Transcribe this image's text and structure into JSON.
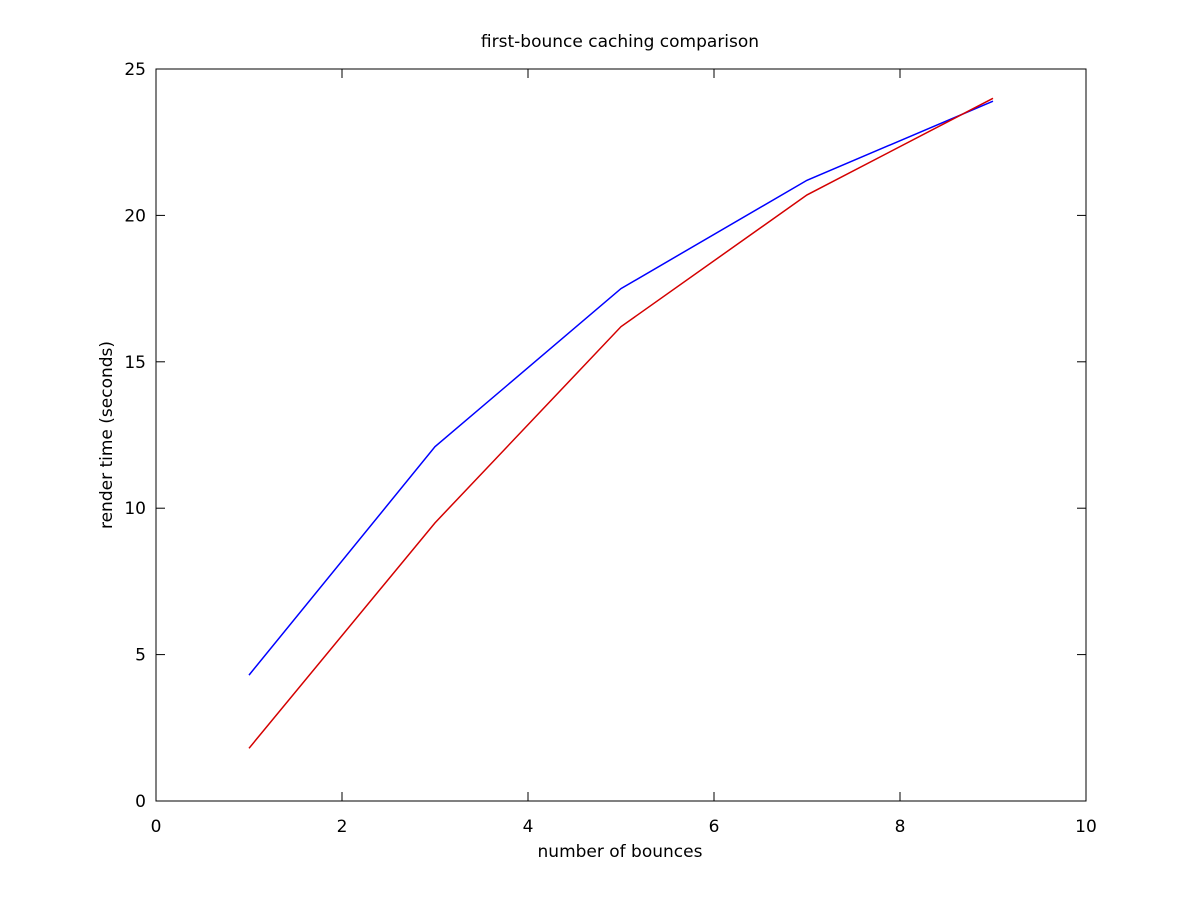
{
  "chart_data": {
    "type": "line",
    "title": "first-bounce caching comparison",
    "xlabel": "number of bounces",
    "ylabel": "render time (seconds)",
    "xlim": [
      0,
      10
    ],
    "ylim": [
      0,
      25
    ],
    "xticks": [
      0,
      2,
      4,
      6,
      8,
      10
    ],
    "yticks": [
      0,
      5,
      10,
      15,
      20,
      25
    ],
    "grid": false,
    "x": [
      1,
      3,
      5,
      7,
      9
    ],
    "series": [
      {
        "color": "#0000ff",
        "values": [
          4.3,
          12.1,
          17.5,
          21.2,
          23.9
        ]
      },
      {
        "color": "#d40000",
        "values": [
          1.8,
          9.5,
          16.2,
          20.7,
          24.0
        ]
      }
    ]
  }
}
